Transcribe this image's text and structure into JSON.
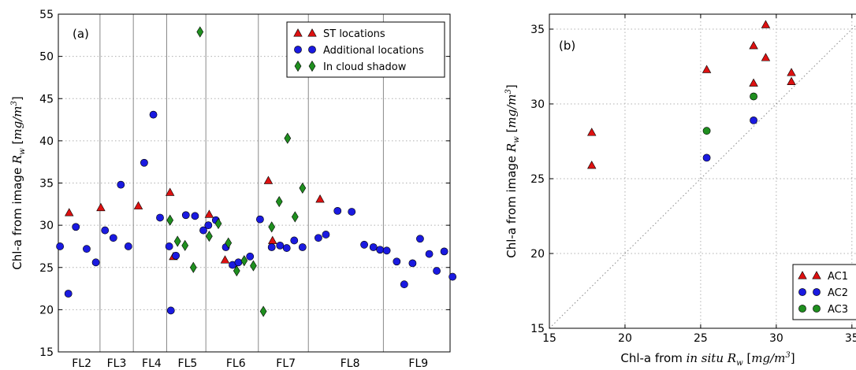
{
  "colors": {
    "st": "#dd1111",
    "additional": "#1a1ae0",
    "cloud": "#1f8f1f",
    "ac1": "#dd1111",
    "ac2": "#1a1ae0",
    "ac3": "#1f8f1f"
  },
  "chart_data": [
    {
      "type": "scatter",
      "panel_label": "(a)",
      "ylabel": "Chl-a from image R_w [mg/m^3]",
      "ylabel_parts": {
        "prefix": "Chl-a from image ",
        "var": "R",
        "sub": "w",
        "unit_pre": " [",
        "unit": "mg/m",
        "sup": "3",
        "unit_post": "]"
      },
      "xlabel": "",
      "ylim": [
        15,
        55
      ],
      "yticks": [
        "15",
        "20",
        "25",
        "30",
        "35",
        "40",
        "45",
        "50",
        "55"
      ],
      "xlim": [
        0,
        47
      ],
      "groups": [
        "FL2",
        "FL3",
        "FL4",
        "FL5",
        "FL6",
        "FL7",
        "FL8",
        "FL9"
      ],
      "group_centers": [
        2.8,
        7.0,
        11.2,
        15.5,
        21.3,
        27.3,
        35.0,
        43.2
      ],
      "group_boundaries": [
        5.0,
        9.0,
        13.0,
        17.7,
        24.0,
        30.0,
        39.0
      ],
      "grid": true,
      "legend_position": "top-right",
      "series": [
        {
          "name": "ST locations",
          "marker": "triangle",
          "color": "#dd1111",
          "x": [
            1.3,
            5.1,
            9.6,
            13.4,
            13.8,
            18.1,
            20.0,
            25.2,
            25.7,
            31.4
          ],
          "y": [
            31.5,
            32.1,
            32.3,
            33.9,
            26.3,
            31.3,
            25.9,
            35.3,
            28.2,
            33.1
          ]
        },
        {
          "name": "Additional locations",
          "marker": "circle",
          "color": "#1a1ae0",
          "x": [
            0.2,
            1.2,
            2.1,
            3.4,
            4.5,
            5.6,
            6.6,
            7.5,
            8.4,
            10.3,
            11.4,
            12.2,
            13.3,
            13.5,
            14.1,
            15.3,
            16.4,
            17.4,
            18.0,
            18.9,
            20.1,
            20.9,
            21.6,
            23.0,
            24.2,
            25.6,
            26.6,
            27.4,
            28.3,
            29.3,
            31.2,
            32.1,
            33.5,
            35.2,
            36.7,
            37.8,
            38.6,
            39.4,
            40.6,
            41.5,
            42.5,
            43.4,
            44.5,
            45.4,
            46.3,
            47.3
          ],
          "y": [
            27.5,
            21.9,
            29.8,
            27.2,
            25.6,
            29.4,
            28.5,
            34.8,
            27.5,
            37.4,
            43.1,
            30.9,
            27.5,
            19.9,
            26.4,
            31.2,
            31.1,
            29.4,
            30.0,
            30.6,
            27.4,
            25.3,
            25.6,
            26.3,
            30.7,
            27.4,
            27.6,
            27.3,
            28.2,
            27.4,
            28.5,
            28.9,
            31.7,
            31.6,
            27.7,
            27.4,
            27.1,
            27.0,
            25.7,
            23.0,
            25.5,
            28.4,
            26.6,
            24.6,
            26.9,
            23.9
          ]
        },
        {
          "name": "In cloud shadow",
          "marker": "diamond",
          "color": "#1f8f1f",
          "x": [
            13.4,
            14.3,
            15.2,
            16.2,
            17.0,
            18.1,
            19.2,
            20.4,
            21.4,
            22.3,
            23.4,
            24.6,
            25.6,
            26.5,
            27.5,
            28.4,
            29.3
          ],
          "y": [
            30.6,
            28.1,
            27.6,
            25.0,
            52.9,
            28.7,
            30.2,
            27.9,
            24.6,
            25.8,
            25.2,
            19.8,
            29.8,
            32.8,
            40.3,
            31.0,
            34.4
          ]
        }
      ]
    },
    {
      "type": "scatter",
      "panel_label": "(b)",
      "xlabel": "Chl-a from in situ R_w [mg/m^3]",
      "xlabel_parts": {
        "prefix": "Chl-a from ",
        "italic": "in situ",
        "space": " ",
        "var": "R",
        "sub": "w",
        "unit_pre": " [",
        "unit": "mg/m",
        "sup": "3",
        "unit_post": "]"
      },
      "ylabel": "Chl-a from image R_w [mg/m^3]",
      "ylabel_parts": {
        "prefix": "Chl-a from image ",
        "var": "R",
        "sub": "w",
        "unit_pre": " [",
        "unit": "mg/m",
        "sup": "3",
        "unit_post": "]"
      },
      "xlim": [
        15,
        36
      ],
      "ylim": [
        15,
        36
      ],
      "xticks": [
        "15",
        "20",
        "25",
        "30",
        "35"
      ],
      "yticks": [
        "15",
        "20",
        "25",
        "30",
        "35"
      ],
      "one_to_one_line": true,
      "grid": true,
      "legend_position": "lower-right",
      "series": [
        {
          "name": "AC1",
          "marker": "triangle",
          "color": "#dd1111",
          "x": [
            17.8,
            17.8,
            25.4,
            28.5,
            28.5,
            29.3,
            29.3,
            31.0,
            31.0
          ],
          "y": [
            28.1,
            25.9,
            32.3,
            31.4,
            33.9,
            33.1,
            35.3,
            32.1,
            31.5
          ]
        },
        {
          "name": "AC2",
          "marker": "circle",
          "color": "#1a1ae0",
          "x": [
            25.4,
            28.5
          ],
          "y": [
            26.4,
            28.9
          ]
        },
        {
          "name": "AC3",
          "marker": "circle",
          "color": "#1f8f1f",
          "x": [
            25.4,
            28.5
          ],
          "y": [
            28.2,
            30.5
          ]
        }
      ]
    }
  ]
}
